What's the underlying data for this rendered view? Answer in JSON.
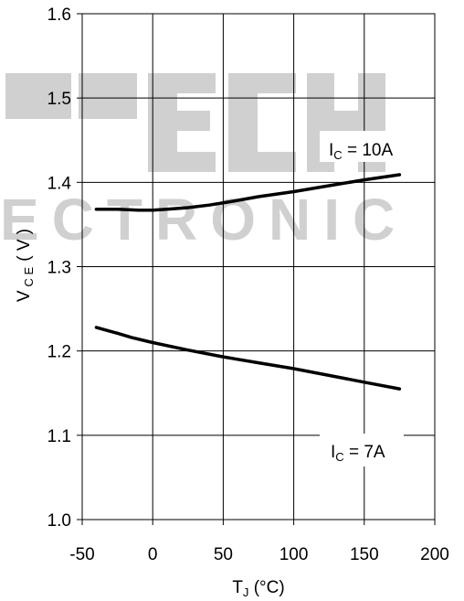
{
  "chart_data": {
    "type": "line",
    "title": "",
    "xlabel": {
      "main": "T",
      "sub": "J",
      "unit": " (°C)"
    },
    "ylabel": {
      "main": "V",
      "sub": "C E",
      "unit": "( V )"
    },
    "xlim": [
      -50,
      200
    ],
    "ylim": [
      1.0,
      1.6
    ],
    "x_ticks": [
      -50,
      0,
      50,
      100,
      150,
      200
    ],
    "y_ticks": [
      1.0,
      1.1,
      1.2,
      1.3,
      1.4,
      1.5,
      1.6
    ],
    "x_tick_labels": [
      "-50",
      "0",
      "50",
      "100",
      "150",
      "200"
    ],
    "y_tick_labels": [
      "1.0",
      "1.1",
      "1.2",
      "1.3",
      "1.4",
      "1.5",
      "1.6"
    ],
    "grid": true,
    "series": [
      {
        "label": {
          "main": "I",
          "sub": "C",
          "value": " = 10A"
        },
        "x": [
          -40,
          -25,
          -10,
          0,
          10,
          25,
          40,
          55,
          75,
          100,
          125,
          150,
          175
        ],
        "y": [
          1.368,
          1.368,
          1.367,
          1.367,
          1.368,
          1.37,
          1.373,
          1.377,
          1.383,
          1.389,
          1.396,
          1.403,
          1.409
        ]
      },
      {
        "label": {
          "main": "I",
          "sub": "C",
          "value": " = 7A"
        },
        "x": [
          -40,
          -25,
          -15,
          0,
          25,
          50,
          75,
          100,
          125,
          150,
          175
        ],
        "y": [
          1.228,
          1.221,
          1.216,
          1.21,
          1.201,
          1.193,
          1.186,
          1.179,
          1.171,
          1.163,
          1.155
        ]
      }
    ]
  },
  "watermark": {
    "line1": "TECH",
    "line2": "ELECTRONIC"
  }
}
